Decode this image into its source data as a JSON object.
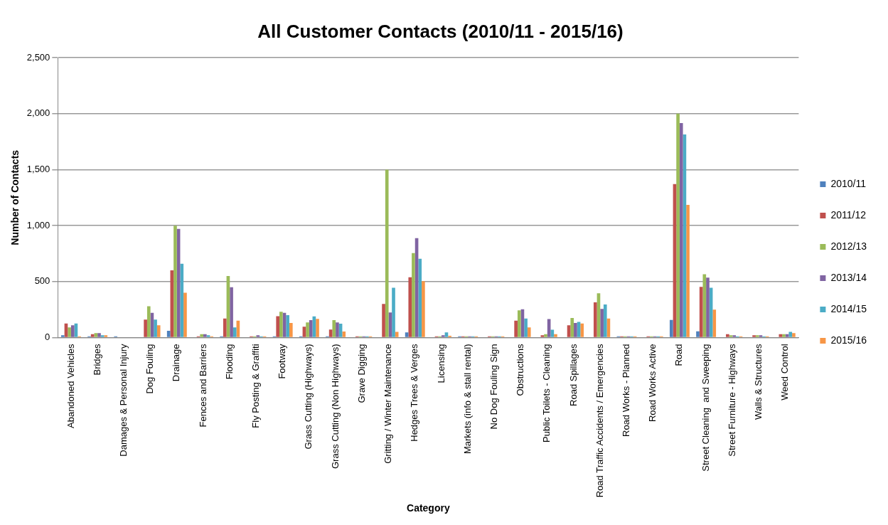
{
  "chart_data": {
    "type": "bar",
    "title": "All Customer Contacts (2010/11 - 2015/16)",
    "xlabel": "Category",
    "ylabel": "Number of Contacts",
    "categories": [
      "Abandoned Vehicles",
      "Bridges",
      "Damages & Personal Injury",
      "Dog Fouling",
      "Drainage",
      "Fences and Barriers",
      "Flooding",
      "Fly Posting & Graffiti",
      "Footway",
      "Grass Cutting (Highways)",
      "Grass Cutting (Non Highways)",
      "Grave Digging",
      "Gritting / Winter Maintenance",
      "Hedges Trees & Verges",
      "Licensing",
      "Markets (info & stall rental)",
      "No Dog Fouling Sign",
      "Obstructions",
      "Public Toilets - Cleaning",
      "Road Spillages",
      "Road Traffic Accidents / Emergencies",
      "Road Works - Planned",
      "Road Works Active",
      "Road",
      "Street Cleaning  and Sweeping",
      "Street Furniture - Highways",
      "Walls & Structures",
      "Weed Control"
    ],
    "series": [
      {
        "name": "2010/11",
        "color": "#4f81bd",
        "values": [
          20,
          10,
          10,
          0,
          60,
          5,
          10,
          0,
          10,
          10,
          10,
          0,
          5,
          46,
          0,
          10,
          0,
          5,
          5,
          5,
          5,
          10,
          0,
          157,
          56,
          5,
          5,
          0
        ]
      },
      {
        "name": "2011/12",
        "color": "#c0504d",
        "values": [
          125,
          30,
          0,
          160,
          600,
          10,
          170,
          10,
          190,
          96,
          71,
          10,
          300,
          538,
          10,
          10,
          10,
          150,
          20,
          110,
          315,
          10,
          10,
          1371,
          452,
          30,
          20,
          30
        ]
      },
      {
        "name": "2012/13",
        "color": "#9bbb59",
        "values": [
          90,
          40,
          0,
          280,
          1000,
          30,
          550,
          10,
          230,
          135,
          155,
          10,
          1500,
          754,
          10,
          10,
          10,
          243,
          30,
          175,
          395,
          10,
          10,
          2000,
          566,
          20,
          20,
          30
        ]
      },
      {
        "name": "2013/14",
        "color": "#8064a2",
        "values": [
          110,
          40,
          0,
          220,
          970,
          30,
          450,
          20,
          220,
          155,
          135,
          10,
          223,
          888,
          20,
          10,
          10,
          253,
          165,
          130,
          255,
          10,
          10,
          1916,
          536,
          20,
          20,
          30
        ]
      },
      {
        "name": "2014/15",
        "color": "#4bacc6",
        "values": [
          125,
          20,
          0,
          160,
          660,
          20,
          90,
          10,
          200,
          188,
          124,
          10,
          444,
          703,
          45,
          10,
          10,
          170,
          70,
          140,
          295,
          10,
          10,
          1815,
          444,
          10,
          10,
          50
        ]
      },
      {
        "name": "2015/16",
        "color": "#f79646",
        "values": [
          10,
          20,
          0,
          110,
          400,
          10,
          150,
          10,
          130,
          167,
          53,
          10,
          51,
          503,
          15,
          10,
          10,
          90,
          30,
          125,
          170,
          10,
          10,
          1185,
          249,
          10,
          10,
          40
        ]
      }
    ],
    "ylim": [
      0,
      2500
    ],
    "yticks": [
      0,
      {
        "value": 500,
        "label": "500"
      },
      {
        "value": 1000,
        "label": "1,000"
      },
      {
        "value": 1500,
        "label": "1,500"
      },
      {
        "value": 2000,
        "label": "2,000"
      },
      {
        "value": 2500,
        "label": "2,500"
      }
    ],
    "grid": "y",
    "legend": "right"
  }
}
